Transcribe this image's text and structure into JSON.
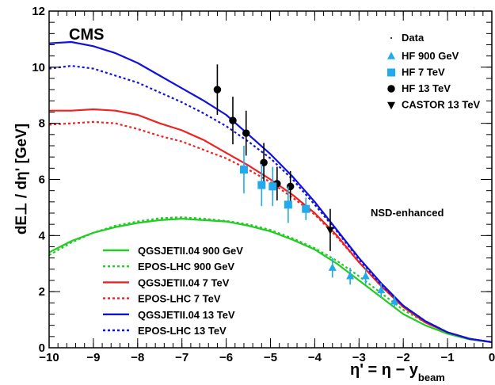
{
  "chart_data": {
    "type": "line",
    "experiment_label": "CMS",
    "annotation": "NSD-enhanced",
    "ylabel": "dE⊥ / dη' [GeV]",
    "xlabel": {
      "main": "η' =  η − y",
      "sub": "beam"
    },
    "xlim": [
      -10,
      0
    ],
    "ylim": [
      0,
      12
    ],
    "x_ticks": [
      -10,
      -9,
      -8,
      -7,
      -6,
      -5,
      -4,
      -3,
      -2,
      -1,
      0
    ],
    "y_ticks": [
      0,
      2,
      4,
      6,
      8,
      10,
      12
    ],
    "x_tick_labels": [
      "−10",
      "−9",
      "−8",
      "−7",
      "−6",
      "−5",
      "−4",
      "−3",
      "−2",
      "−1",
      "0"
    ],
    "y_tick_labels": [
      "0",
      "2",
      "4",
      "6",
      "8",
      "10",
      "12"
    ],
    "grid": false,
    "legend_data": {
      "title": "Data",
      "entries": [
        {
          "name": "HF 900 GeV",
          "marker": "triangle-up",
          "color": "#22aaee"
        },
        {
          "name": "HF 7 TeV",
          "marker": "square",
          "color": "#22aaee"
        },
        {
          "name": "HF 13 TeV",
          "marker": "circle",
          "color": "#000000"
        },
        {
          "name": "CASTOR 13 TeV",
          "marker": "triangle-down",
          "color": "#000000"
        }
      ]
    },
    "legend_models": [
      {
        "name": "QGSJETII.04 900 GeV",
        "color": "#22cc22",
        "dashed": false
      },
      {
        "name": "EPOS-LHC 900 GeV",
        "color": "#22cc22",
        "dashed": true
      },
      {
        "name": "QGSJETII.04 7 TeV",
        "color": "#ee2222",
        "dashed": false
      },
      {
        "name": "EPOS-LHC 7 TeV",
        "color": "#ee2222",
        "dashed": true
      },
      {
        "name": "QGSJETII.04 13 TeV",
        "color": "#1111dd",
        "dashed": false
      },
      {
        "name": "EPOS-LHC 13 TeV",
        "color": "#1111dd",
        "dashed": true
      }
    ],
    "model_series": [
      {
        "name": "QGSJETII.04 900 GeV",
        "color": "#22cc22",
        "dashed": false,
        "x": [
          -10,
          -9.5,
          -9,
          -8.5,
          -8,
          -7.5,
          -7,
          -6.5,
          -6,
          -5.5,
          -5,
          -4.5,
          -4,
          -3.5,
          -3,
          -2.5,
          -2,
          -1.5,
          -1,
          -0.5,
          0
        ],
        "y": [
          3.4,
          3.8,
          4.1,
          4.3,
          4.45,
          4.55,
          4.6,
          4.55,
          4.5,
          4.35,
          4.15,
          3.85,
          3.5,
          3.0,
          2.4,
          1.8,
          1.2,
          0.8,
          0.5,
          0.3,
          0.2
        ]
      },
      {
        "name": "EPOS-LHC 900 GeV",
        "color": "#22cc22",
        "dashed": true,
        "x": [
          -10,
          -9.5,
          -9,
          -8.5,
          -8,
          -7.5,
          -7,
          -6.5,
          -6,
          -5.5,
          -5,
          -4.5,
          -4,
          -3.5,
          -3,
          -2.5,
          -2,
          -1.5,
          -1,
          -0.5,
          0
        ],
        "y": [
          3.3,
          3.75,
          4.1,
          4.35,
          4.5,
          4.62,
          4.65,
          4.6,
          4.52,
          4.4,
          4.2,
          3.9,
          3.55,
          3.1,
          2.55,
          1.95,
          1.35,
          0.9,
          0.55,
          0.32,
          0.2
        ]
      },
      {
        "name": "QGSJETII.04 7 TeV",
        "color": "#ee2222",
        "dashed": false,
        "x": [
          -10,
          -9.5,
          -9,
          -8.5,
          -8,
          -7.5,
          -7,
          -6.5,
          -6,
          -5.5,
          -5,
          -4.5,
          -4,
          -3.5,
          -3,
          -2.5,
          -2,
          -1.5,
          -1,
          -0.5,
          0
        ],
        "y": [
          8.45,
          8.45,
          8.5,
          8.45,
          8.3,
          8.0,
          7.75,
          7.4,
          6.95,
          6.5,
          6.0,
          5.45,
          4.8,
          4.0,
          3.05,
          2.2,
          1.45,
          0.9,
          0.55,
          0.32,
          0.2
        ]
      },
      {
        "name": "EPOS-LHC 7 TeV",
        "color": "#ee2222",
        "dashed": true,
        "x": [
          -10,
          -9.5,
          -9,
          -8.5,
          -8,
          -7.5,
          -7,
          -6.5,
          -6,
          -5.5,
          -5,
          -4.5,
          -4,
          -3.5,
          -3,
          -2.5,
          -2,
          -1.5,
          -1,
          -0.5,
          0
        ],
        "y": [
          7.95,
          8.0,
          8.05,
          8.0,
          7.8,
          7.55,
          7.35,
          7.05,
          6.75,
          6.35,
          5.9,
          5.35,
          4.75,
          3.95,
          3.05,
          2.2,
          1.45,
          0.9,
          0.55,
          0.32,
          0.2
        ]
      },
      {
        "name": "QGSJETII.04 13 TeV",
        "color": "#1111dd",
        "dashed": false,
        "x": [
          -10,
          -9.5,
          -9,
          -8.5,
          -8,
          -7.5,
          -7,
          -6.5,
          -6,
          -5.5,
          -5,
          -4.5,
          -4,
          -3.5,
          -3,
          -2.5,
          -2,
          -1.5,
          -1,
          -0.5,
          0
        ],
        "y": [
          10.85,
          10.9,
          10.75,
          10.5,
          10.15,
          9.7,
          9.25,
          8.8,
          8.3,
          7.6,
          6.9,
          6.1,
          5.2,
          4.2,
          3.2,
          2.3,
          1.5,
          0.95,
          0.55,
          0.32,
          0.2
        ]
      },
      {
        "name": "EPOS-LHC 13 TeV",
        "color": "#1111dd",
        "dashed": true,
        "x": [
          -10,
          -9.5,
          -9,
          -8.5,
          -8,
          -7.5,
          -7,
          -6.5,
          -6,
          -5.5,
          -5,
          -4.5,
          -4,
          -3.5,
          -3,
          -2.5,
          -2,
          -1.5,
          -1,
          -0.5,
          0
        ],
        "y": [
          9.95,
          10.05,
          9.95,
          9.7,
          9.45,
          9.1,
          8.75,
          8.35,
          7.9,
          7.35,
          6.75,
          6.0,
          5.1,
          4.15,
          3.15,
          2.25,
          1.5,
          0.95,
          0.55,
          0.32,
          0.2
        ]
      }
    ],
    "data_series": [
      {
        "name": "HF 13 TeV",
        "marker": "circle",
        "color": "#000000",
        "x": [
          -6.2,
          -5.85,
          -5.55,
          -5.15,
          -4.85,
          -4.55
        ],
        "y": [
          9.2,
          8.1,
          7.65,
          6.6,
          5.85,
          5.75
        ],
        "err": [
          0.9,
          0.85,
          0.8,
          0.7,
          0.6,
          0.55
        ]
      },
      {
        "name": "HF 7 TeV",
        "marker": "square",
        "color": "#22aaee",
        "x": [
          -5.6,
          -5.2,
          -4.95,
          -4.6,
          -4.2
        ],
        "y": [
          6.35,
          5.8,
          5.75,
          5.1,
          4.95
        ],
        "err": [
          0.85,
          0.75,
          0.7,
          0.65,
          0.4
        ]
      },
      {
        "name": "HF 900 GeV",
        "marker": "triangle-up",
        "color": "#22aaee",
        "x": [
          -3.6,
          -3.2,
          -2.85,
          -2.5,
          -2.2
        ],
        "y": [
          2.85,
          2.55,
          2.55,
          2.05,
          1.65
        ],
        "err": [
          0.35,
          0.3,
          0.3,
          0.25,
          0.2
        ]
      },
      {
        "name": "CASTOR 13 TeV",
        "marker": "triangle-down",
        "color": "#000000",
        "x": [
          -3.65
        ],
        "y": [
          4.2
        ],
        "err": [
          0.75
        ]
      }
    ]
  }
}
